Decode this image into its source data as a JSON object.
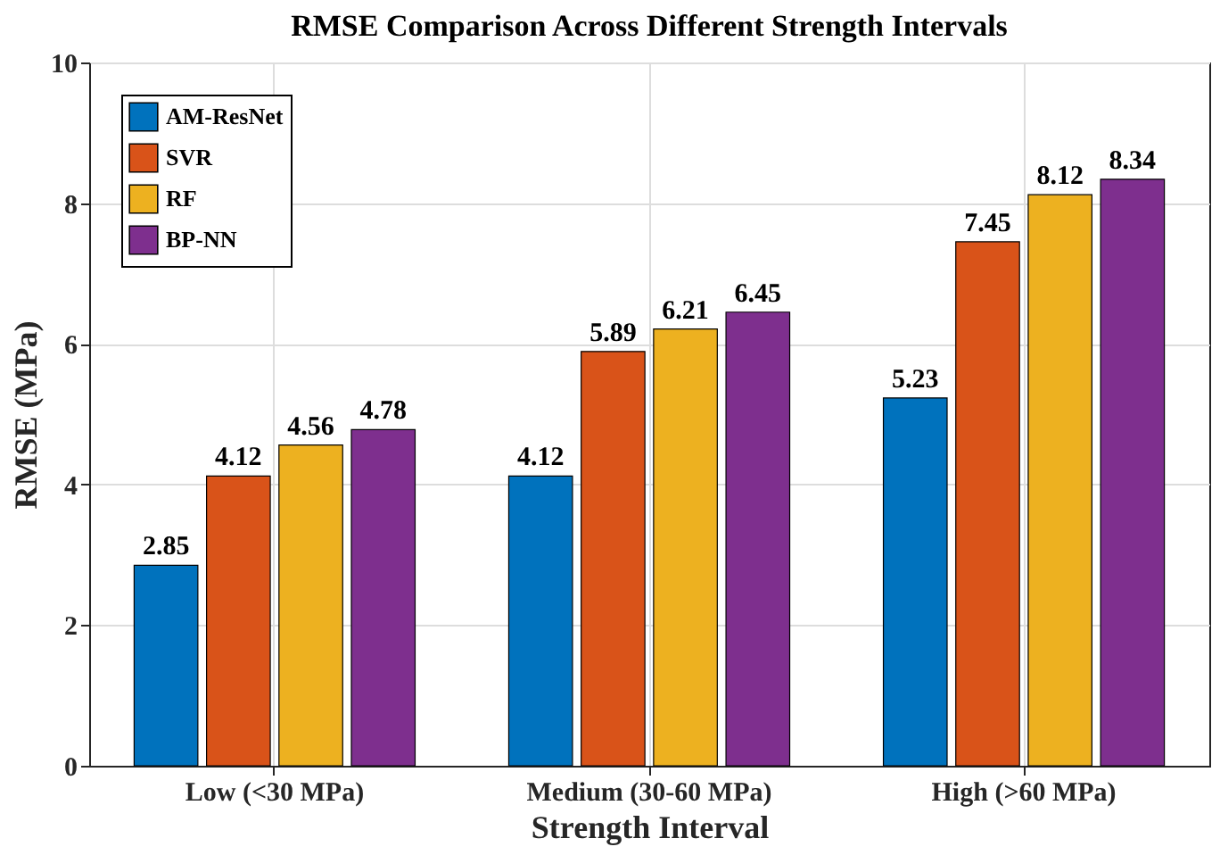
{
  "chart_data": {
    "type": "bar",
    "title": "RMSE Comparison Across Different Strength Intervals",
    "xlabel": "Strength Interval",
    "ylabel": "RMSE (MPa)",
    "categories": [
      "Low (<30 MPa)",
      "Medium (30-60 MPa)",
      "High (>60 MPa)"
    ],
    "series": [
      {
        "name": "AM-ResNet",
        "color": "#0072bd",
        "values": [
          2.85,
          4.12,
          5.23
        ]
      },
      {
        "name": "SVR",
        "color": "#d95319",
        "values": [
          4.12,
          5.89,
          7.45
        ]
      },
      {
        "name": "RF",
        "color": "#edb120",
        "values": [
          4.56,
          6.21,
          8.12
        ]
      },
      {
        "name": "BP-NN",
        "color": "#7e2f8e",
        "values": [
          4.78,
          6.45,
          8.34
        ]
      }
    ],
    "ylim": [
      0,
      10
    ],
    "yticks": [
      0,
      2,
      4,
      6,
      8,
      10
    ],
    "grid": true,
    "legend": "top left",
    "data_labels": true
  }
}
